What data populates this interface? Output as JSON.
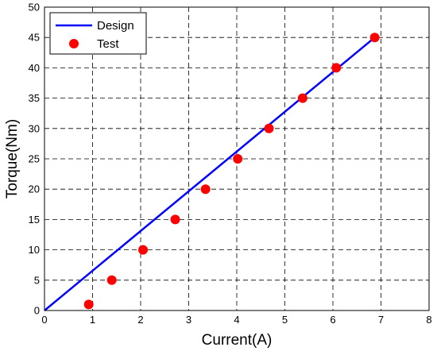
{
  "chart_data": {
    "type": "scatter",
    "title": "",
    "xlabel": "Current(A)",
    "ylabel": "Torque(Nm)",
    "xlim": [
      0,
      8
    ],
    "ylim": [
      0,
      50
    ],
    "xticks": [
      0,
      1,
      2,
      3,
      4,
      5,
      6,
      7,
      8
    ],
    "yticks": [
      0,
      5,
      10,
      15,
      20,
      25,
      30,
      35,
      40,
      45,
      50
    ],
    "grid": true,
    "legend_position": "top-left",
    "series": [
      {
        "name": "Design",
        "kind": "line",
        "color": "#0000ff",
        "x": [
          0,
          6.9
        ],
        "y": [
          0,
          45.2
        ]
      },
      {
        "name": "Test",
        "kind": "marker",
        "color": "#ff0000",
        "x": [
          0.92,
          1.4,
          2.05,
          2.72,
          3.35,
          4.02,
          4.67,
          5.37,
          6.07,
          6.87
        ],
        "y": [
          1,
          5,
          10,
          15,
          20,
          25,
          30,
          35,
          40,
          45
        ]
      }
    ]
  }
}
